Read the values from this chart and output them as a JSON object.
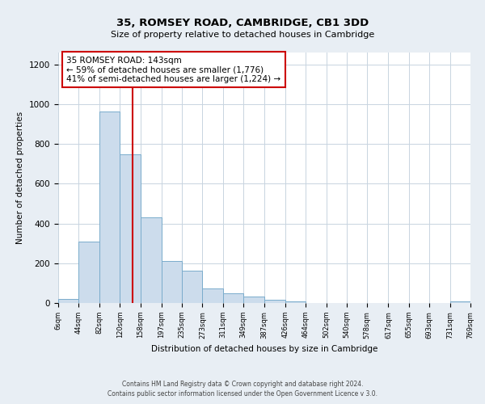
{
  "title": "35, ROMSEY ROAD, CAMBRIDGE, CB1 3DD",
  "subtitle": "Size of property relative to detached houses in Cambridge",
  "xlabel": "Distribution of detached houses by size in Cambridge",
  "ylabel": "Number of detached properties",
  "bin_edges": [
    6,
    44,
    82,
    120,
    158,
    197,
    235,
    273,
    311,
    349,
    387,
    426,
    464,
    502,
    540,
    578,
    617,
    655,
    693,
    731,
    769
  ],
  "bar_heights": [
    20,
    308,
    963,
    748,
    432,
    210,
    163,
    75,
    47,
    34,
    18,
    8,
    0,
    0,
    0,
    0,
    0,
    0,
    0,
    10
  ],
  "bar_color": "#ccdcec",
  "bar_edge_color": "#7aaccc",
  "red_line_x": 143,
  "annotation_text": "35 ROMSEY ROAD: 143sqm\n← 59% of detached houses are smaller (1,776)\n41% of semi-detached houses are larger (1,224) →",
  "annotation_box_color": "#ffffff",
  "annotation_box_edge_color": "#cc0000",
  "ylim": [
    0,
    1260
  ],
  "yticks": [
    0,
    200,
    400,
    600,
    800,
    1000,
    1200
  ],
  "footer_line1": "Contains HM Land Registry data © Crown copyright and database right 2024.",
  "footer_line2": "Contains public sector information licensed under the Open Government Licence v 3.0.",
  "background_color": "#e8eef4",
  "plot_background_color": "#ffffff",
  "grid_color": "#c8d4e0"
}
